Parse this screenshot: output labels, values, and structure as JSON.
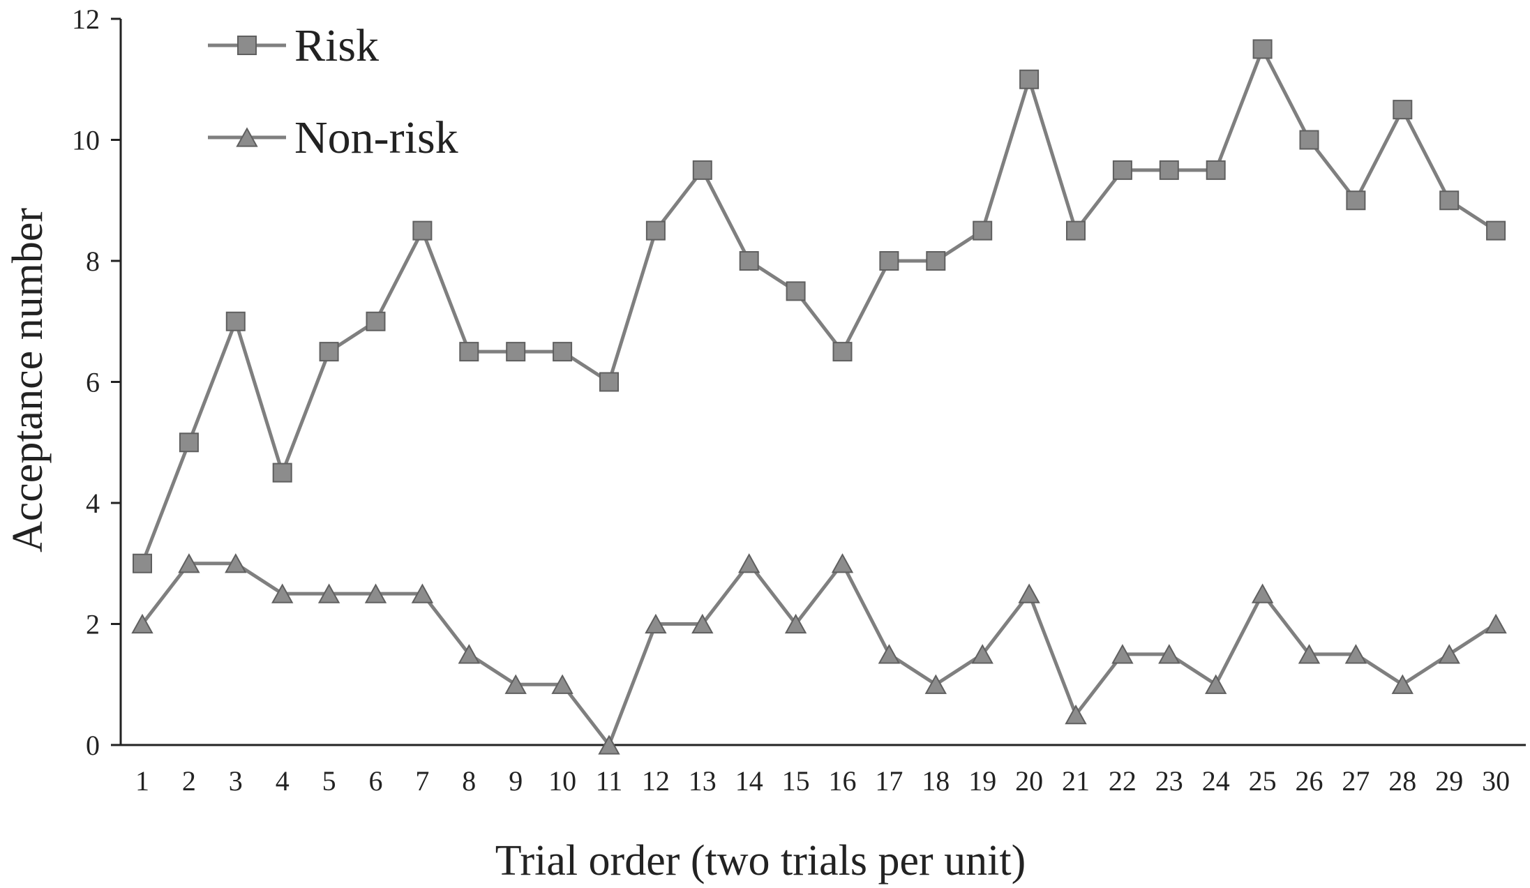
{
  "chart_data": {
    "type": "line",
    "xlabel": "Trial order (two trials per unit)",
    "ylabel": "Acceptance number",
    "x": [
      1,
      2,
      3,
      4,
      5,
      6,
      7,
      8,
      9,
      10,
      11,
      12,
      13,
      14,
      15,
      16,
      17,
      18,
      19,
      20,
      21,
      22,
      23,
      24,
      25,
      26,
      27,
      28,
      29,
      30
    ],
    "x_tick_labels": [
      "1",
      "2",
      "3",
      "4",
      "5",
      "6",
      "7",
      "8",
      "9",
      "10",
      "11",
      "12",
      "13",
      "14",
      "15",
      "16",
      "17",
      "18",
      "19",
      "20",
      "21",
      "22",
      "23",
      "24",
      "25",
      "26",
      "27",
      "28",
      "29",
      "30"
    ],
    "y_tick_values": [
      0,
      2,
      4,
      6,
      8,
      10,
      12
    ],
    "y_tick_labels": [
      "0",
      "2",
      "4",
      "6",
      "8",
      "10",
      "12"
    ],
    "ylim": [
      0,
      12
    ],
    "grid": false,
    "legend_position": "top-left",
    "line_color": "#7f7f7f",
    "marker_color": "#8c8c8c",
    "series": [
      {
        "name": "Risk",
        "marker": "square",
        "values": [
          3,
          5,
          7,
          4.5,
          6.5,
          7,
          8.5,
          6.5,
          6.5,
          6.5,
          6,
          8.5,
          9.5,
          8,
          7.5,
          6.5,
          8,
          8,
          8.5,
          11,
          8.5,
          9.5,
          9.5,
          9.5,
          11.5,
          10,
          9,
          10.5,
          9,
          8.5
        ]
      },
      {
        "name": "Non-risk",
        "marker": "triangle",
        "values": [
          2,
          3,
          3,
          2.5,
          2.5,
          2.5,
          2.5,
          1.5,
          1,
          1,
          0,
          2,
          2,
          3,
          2,
          3,
          1.5,
          1,
          1.5,
          2.5,
          0.5,
          1.5,
          1.5,
          1,
          2.5,
          1.5,
          1.5,
          1,
          1.5,
          2
        ]
      }
    ]
  }
}
